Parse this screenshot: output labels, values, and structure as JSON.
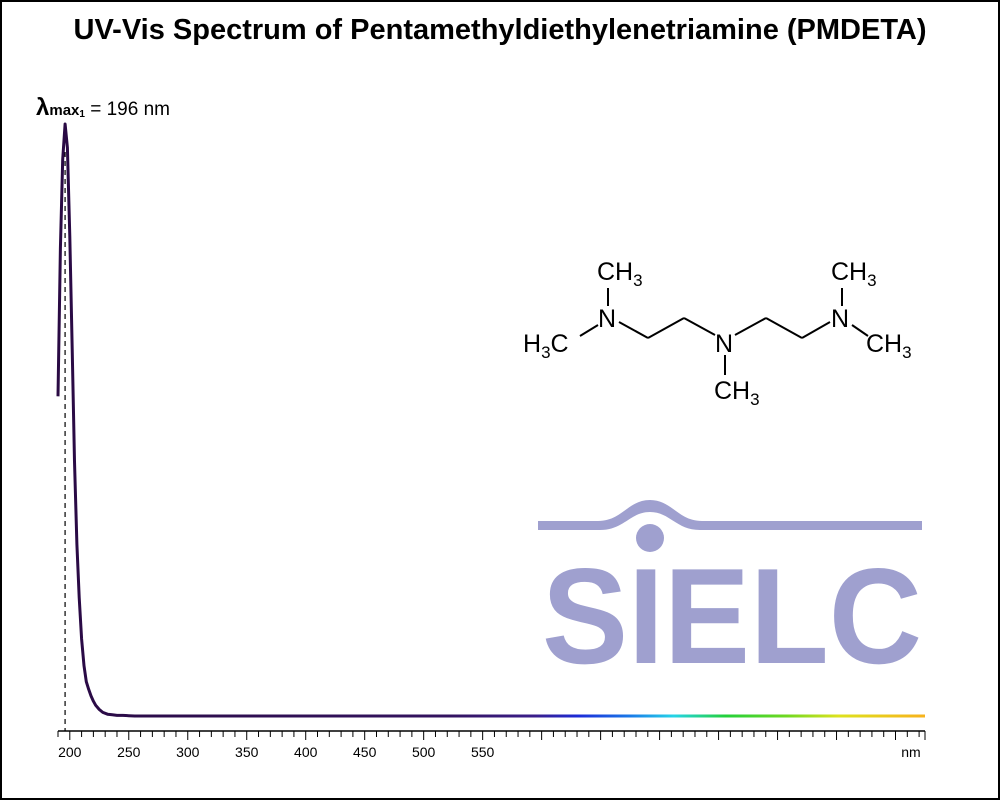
{
  "chart_data": {
    "type": "line",
    "title": "UV-Vis Spectrum of Pentamethyldiethylenetriamine (PMDETA)",
    "xlabel": "nm",
    "ylabel": "",
    "xlim": [
      190,
      925
    ],
    "ylim": [
      0,
      1
    ],
    "x_ticks": [
      200,
      250,
      300,
      350,
      400,
      450,
      500,
      550
    ],
    "x_unit_label": "nm",
    "grid": false,
    "peak": {
      "symbol": "λ",
      "sub": "max",
      "sub_index": "1",
      "text": "= 196 nm",
      "x": 196
    },
    "series": [
      {
        "x": [
          190,
          192,
          194,
          196,
          198,
          200,
          202,
          204,
          206,
          208,
          210,
          212,
          214,
          216,
          218,
          220,
          222,
          225,
          228,
          232,
          236,
          240,
          245,
          250,
          255,
          260,
          300,
          400,
          500,
          600,
          700,
          800,
          925
        ],
        "y": [
          0.54,
          0.79,
          0.94,
          1.0,
          0.96,
          0.81,
          0.62,
          0.43,
          0.29,
          0.2,
          0.13,
          0.085,
          0.058,
          0.045,
          0.034,
          0.025,
          0.018,
          0.011,
          0.006,
          0.003,
          0.002,
          0.001,
          0.001,
          0.0005,
          0.0,
          0.0,
          0.0,
          0.0,
          0.0,
          0.0,
          0.0,
          0.0,
          0.0
        ]
      }
    ]
  },
  "molecule": {
    "labels": [
      "CH",
      "3",
      "H",
      "3",
      "C",
      "N",
      "N",
      "CH",
      "3",
      "CH",
      "3",
      "N",
      "CH",
      "3"
    ]
  },
  "logo": {
    "text": "SIELC",
    "color": "#9fa0cf"
  }
}
